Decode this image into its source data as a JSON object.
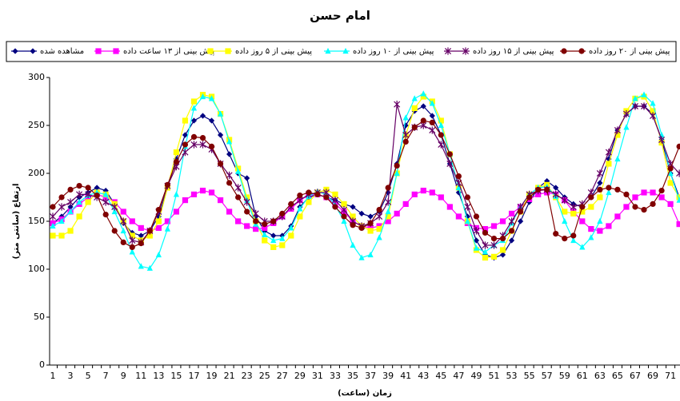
{
  "chart_data": {
    "type": "line",
    "title": "امام حسن",
    "x_label": "زمان (ساعت)",
    "y_label": "ارتفاع (سانتی متر)",
    "legend": "top",
    "categories": [
      1,
      null,
      3,
      null,
      5,
      null,
      7,
      null,
      9,
      null,
      11,
      null,
      13,
      null,
      15,
      null,
      17,
      null,
      19,
      null,
      21,
      null,
      23,
      null,
      25,
      null,
      27,
      null,
      29,
      null,
      31,
      null,
      33,
      null,
      35,
      null,
      37,
      null,
      39,
      null,
      41,
      null,
      43,
      null,
      45,
      null,
      47,
      null,
      49,
      null,
      51,
      null,
      53,
      null,
      55,
      null,
      57,
      null,
      59,
      null,
      61,
      null,
      63,
      null,
      65,
      null,
      67,
      null,
      69,
      null,
      71,
      null
    ],
    "ylim": [
      0,
      300
    ],
    "yticks": [
      0,
      50,
      100,
      150,
      200,
      250,
      300
    ],
    "series": [
      {
        "name": "مشاهده شده",
        "color": "#000080",
        "marker": "diamond",
        "values": [
          148,
          155,
          165,
          175,
          180,
          185,
          182,
          168,
          148,
          138,
          135,
          140,
          155,
          185,
          215,
          240,
          255,
          260,
          255,
          240,
          220,
          200,
          195,
          155,
          140,
          135,
          135,
          145,
          165,
          175,
          178,
          175,
          172,
          168,
          165,
          158,
          155,
          160,
          180,
          210,
          250,
          265,
          270,
          260,
          240,
          210,
          180,
          155,
          130,
          115,
          112,
          115,
          130,
          150,
          170,
          185,
          192,
          185,
          175,
          168,
          165,
          175,
          190,
          215,
          245,
          262,
          270,
          270,
          262,
          235,
          200,
          175
        ]
      },
      {
        "name": "پیش بینی از ۱۳ ساعت داده",
        "color": "#FF00FF",
        "marker": "square",
        "values": [
          148,
          152,
          160,
          168,
          175,
          178,
          175,
          170,
          160,
          150,
          143,
          140,
          143,
          150,
          160,
          172,
          178,
          182,
          180,
          172,
          160,
          150,
          145,
          142,
          143,
          148,
          155,
          163,
          172,
          177,
          178,
          175,
          168,
          160,
          150,
          145,
          143,
          145,
          150,
          158,
          168,
          178,
          182,
          180,
          175,
          165,
          155,
          148,
          143,
          142,
          145,
          150,
          158,
          165,
          173,
          178,
          180,
          178,
          172,
          160,
          150,
          142,
          140,
          145,
          155,
          165,
          175,
          180,
          180,
          175,
          168,
          147
        ]
      },
      {
        "name": "پیش بینی از ۵ روز داده",
        "color": "#FFFF00",
        "marker": "square",
        "values": [
          135,
          135,
          140,
          155,
          170,
          180,
          178,
          168,
          150,
          135,
          130,
          135,
          150,
          185,
          222,
          255,
          275,
          282,
          280,
          262,
          235,
          205,
          175,
          150,
          130,
          123,
          125,
          135,
          155,
          170,
          180,
          183,
          178,
          168,
          155,
          145,
          140,
          142,
          155,
          200,
          240,
          268,
          280,
          275,
          255,
          220,
          185,
          150,
          120,
          112,
          113,
          120,
          140,
          160,
          178,
          185,
          188,
          175,
          160,
          158,
          160,
          165,
          175,
          210,
          240,
          265,
          278,
          280,
          265,
          232,
          190,
          175
        ]
      },
      {
        "name": "پیش بینی از ۱۰ روز داده",
        "color": "#00FFFF",
        "marker": "triangle",
        "values": [
          145,
          150,
          160,
          170,
          177,
          180,
          178,
          160,
          140,
          118,
          103,
          101,
          115,
          142,
          178,
          228,
          268,
          280,
          278,
          262,
          233,
          202,
          172,
          147,
          136,
          130,
          132,
          143,
          163,
          176,
          181,
          178,
          167,
          150,
          125,
          112,
          115,
          133,
          160,
          200,
          258,
          278,
          283,
          273,
          250,
          220,
          185,
          150,
          122,
          118,
          125,
          130,
          148,
          165,
          178,
          185,
          186,
          176,
          150,
          130,
          123,
          133,
          150,
          180,
          215,
          248,
          278,
          282,
          273,
          240,
          200,
          172
        ]
      },
      {
        "name": "پیش بینی از ۱۵ روز داده",
        "color": "#660066",
        "marker": "star",
        "values": [
          155,
          165,
          170,
          178,
          178,
          175,
          170,
          165,
          150,
          130,
          128,
          140,
          160,
          187,
          207,
          222,
          230,
          230,
          225,
          210,
          198,
          185,
          170,
          158,
          150,
          150,
          155,
          165,
          172,
          178,
          180,
          180,
          172,
          162,
          150,
          145,
          148,
          155,
          170,
          272,
          240,
          248,
          250,
          245,
          230,
          210,
          190,
          165,
          140,
          125,
          125,
          135,
          150,
          165,
          178,
          182,
          183,
          178,
          172,
          165,
          168,
          180,
          200,
          222,
          245,
          262,
          270,
          270,
          260,
          235,
          210,
          200
        ]
      },
      {
        "name": "پیش بینی از ۲۰ روز داده",
        "color": "#800000",
        "marker": "circle",
        "values": [
          165,
          175,
          183,
          187,
          185,
          177,
          157,
          140,
          128,
          123,
          127,
          140,
          162,
          188,
          212,
          230,
          238,
          237,
          228,
          210,
          190,
          175,
          160,
          150,
          147,
          150,
          158,
          168,
          177,
          180,
          178,
          175,
          165,
          155,
          146,
          143,
          148,
          162,
          185,
          208,
          233,
          248,
          255,
          253,
          240,
          220,
          197,
          175,
          155,
          138,
          132,
          132,
          140,
          160,
          175,
          183,
          183,
          137,
          132,
          135,
          165,
          175,
          183,
          185,
          183,
          178,
          165,
          162,
          168,
          182,
          205,
          228
        ]
      }
    ]
  }
}
